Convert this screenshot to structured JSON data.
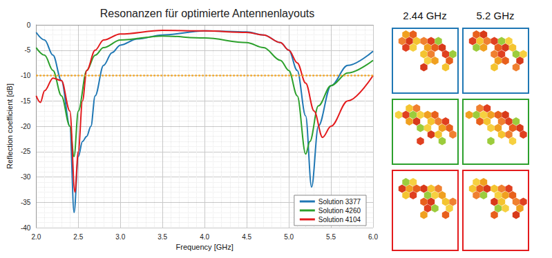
{
  "chart_data": {
    "type": "line",
    "title": "Resonanzen für optimierte Antennenlayouts",
    "x_label": "Frequency [GHz]",
    "y_label": "Reflection coefficient [dB]",
    "xlim": [
      2,
      6
    ],
    "xticks": [
      {
        "value": 2,
        "label": "2.0"
      },
      2.5,
      {
        "value": 3,
        "label": "3.0"
      },
      3.5,
      {
        "value": 4,
        "label": "4.0"
      },
      4.5,
      {
        "value": 5,
        "label": "5.0"
      },
      5.5,
      {
        "value": 6,
        "label": "6.0"
      }
    ],
    "ylim": [
      -40,
      0
    ],
    "yticks": [
      -40,
      -35,
      -30,
      -25,
      -20,
      -15,
      -10,
      -5,
      0
    ],
    "grid": true,
    "legend": "lower right",
    "reference_line": {
      "value": -10,
      "color": "#f5a623",
      "line_style": "dotted"
    },
    "series": [
      {
        "name": "Solution 3377",
        "color": "#1f77b4",
        "x": [
          2.0,
          2.1,
          2.2,
          2.3,
          2.4,
          2.45,
          2.5,
          2.55,
          2.6,
          2.65,
          2.7,
          2.8,
          2.9,
          3.0,
          3.2,
          3.5,
          4.0,
          4.5,
          4.7,
          4.9,
          5.0,
          5.1,
          5.2,
          5.27,
          5.35,
          5.5,
          5.7,
          6.0
        ],
        "values": [
          -1.5,
          -3,
          -6,
          -11,
          -20,
          -37,
          -26,
          -23,
          -22,
          -20,
          -14,
          -8,
          -5.5,
          -4,
          -2.8,
          -2,
          -1.2,
          -1.4,
          -2,
          -3.5,
          -5,
          -9,
          -18,
          -32,
          -20,
          -12,
          -8,
          -5.2
        ]
      },
      {
        "name": "Solution 4260",
        "color": "#2ca02c",
        "x": [
          2.0,
          2.1,
          2.2,
          2.3,
          2.4,
          2.45,
          2.5,
          2.6,
          2.7,
          2.8,
          3.0,
          3.5,
          4.0,
          4.5,
          4.7,
          4.9,
          5.0,
          5.1,
          5.2,
          5.25,
          5.35,
          5.5,
          5.7,
          6.0
        ],
        "values": [
          -4.5,
          -6,
          -9,
          -14,
          -20,
          -26,
          -17,
          -9,
          -6,
          -4.5,
          -3,
          -2.2,
          -2.6,
          -3.5,
          -4.5,
          -7,
          -9,
          -14,
          -25.5,
          -23,
          -16,
          -12,
          -9.5,
          -7
        ]
      },
      {
        "name": "Solution 4104",
        "color": "#e31a1c",
        "x": [
          2.0,
          2.05,
          2.1,
          2.2,
          2.3,
          2.4,
          2.46,
          2.5,
          2.55,
          2.6,
          2.7,
          2.8,
          3.0,
          3.5,
          4.0,
          4.5,
          4.7,
          4.9,
          5.0,
          5.1,
          5.2,
          5.3,
          5.4,
          5.5,
          5.7,
          6.0
        ],
        "values": [
          -14,
          -15.3,
          -13,
          -10.5,
          -11,
          -17,
          -33,
          -25,
          -15,
          -9,
          -5,
          -3,
          -1.8,
          -1.1,
          -1.2,
          -1.5,
          -2,
          -3.5,
          -5,
          -7.5,
          -11.5,
          -17,
          -22.2,
          -20,
          -15,
          -10
        ]
      }
    ],
    "panels": {
      "columns": [
        "2.44 GHz",
        "5.2 GHz"
      ]
    }
  }
}
